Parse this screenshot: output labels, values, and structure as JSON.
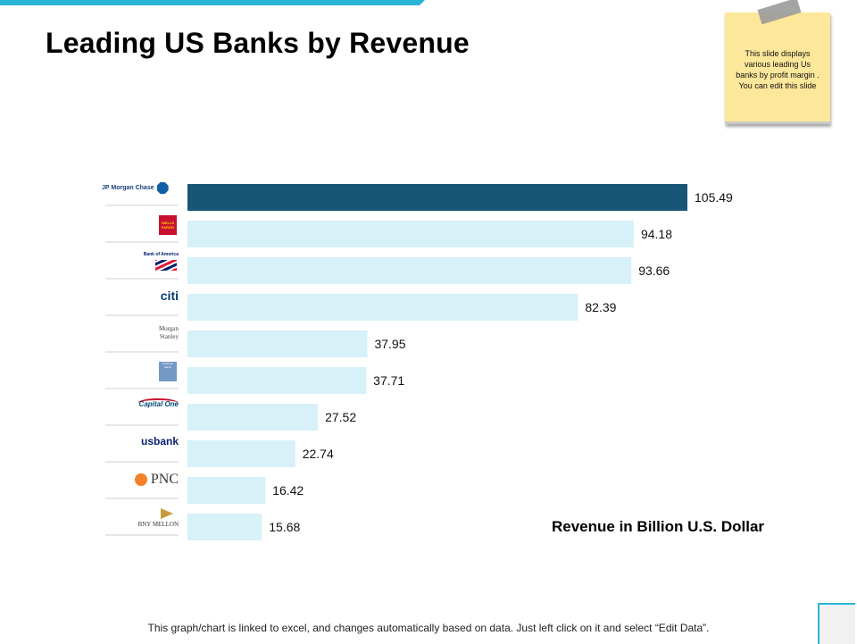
{
  "slide": {
    "title": "Leading US Banks by Revenue",
    "sticky_note": "This slide displays various leading Us banks by profit margin . You can edit this slide",
    "footer": "This graph/chart is linked to excel, and changes automatically based on data.  Just left click on it and select “Edit Data”."
  },
  "colors": {
    "highlight_bar": "#175677",
    "bar": "#d6f1f7",
    "accent": "#29b5d6",
    "sticky": "#fde79a"
  },
  "chart_data": {
    "type": "bar",
    "orientation": "horizontal",
    "title": "Revenue in Billion U.S. Dollar",
    "categories": [
      "JP Morgan Chase",
      "Wells Fargo",
      "Bank of America",
      "Citi",
      "Morgan Stanley",
      "Goldman Sachs",
      "Capital One",
      "US Bank",
      "PNC",
      "BNY Mellon"
    ],
    "values": [
      105.49,
      94.18,
      93.66,
      82.39,
      37.95,
      37.71,
      27.52,
      22.74,
      16.42,
      15.68
    ],
    "value_labels": [
      "105.49",
      "94.18",
      "93.66",
      "82.39",
      "37.95",
      "37.71",
      "27.52",
      "22.74",
      "16.42",
      "15.68"
    ],
    "highlight_index": 0,
    "grid": false,
    "logos": [
      {
        "text": "JP Morgan Chase",
        "icon": "chase-octagon-icon"
      },
      {
        "text": "WELLS FARGO",
        "icon": "wells-fargo-logo"
      },
      {
        "text": "Bank of America",
        "icon": "bofa-flag-icon"
      },
      {
        "text": "citi",
        "icon": "citi-arc-icon"
      },
      {
        "text": "Morgan Stanley",
        "icon": "morgan-stanley-logo"
      },
      {
        "text": "Goldman Sachs",
        "icon": "goldman-sachs-logo"
      },
      {
        "text": "Capital One",
        "icon": "capital-one-swoosh-icon"
      },
      {
        "text": "usbank",
        "icon": "us-bank-shield-icon"
      },
      {
        "text": "PNC",
        "icon": "pnc-icon"
      },
      {
        "text": "BNY MELLON",
        "icon": "bny-mellon-arrow-icon"
      }
    ]
  }
}
